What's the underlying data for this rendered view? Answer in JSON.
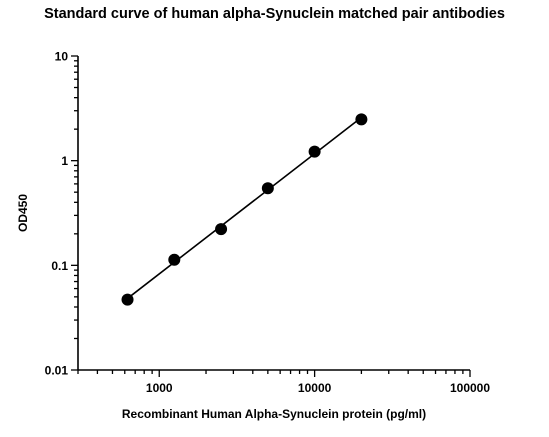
{
  "chart_data": {
    "type": "line",
    "title": "Standard curve of human alpha-Synuclein matched pair antibodies",
    "xlabel": "Recombinant Human Alpha-Synuclein protein (pg/ml)",
    "ylabel": "OD450",
    "xscale": "log",
    "yscale": "log",
    "xlim": [
      300,
      100000
    ],
    "ylim": [
      0.01,
      10
    ],
    "xticks": [
      1000,
      10000,
      100000
    ],
    "xtick_labels": [
      "1000",
      "10000",
      "100000"
    ],
    "yticks": [
      0.01,
      0.1,
      1,
      10
    ],
    "ytick_labels": [
      "0.01",
      "0.1",
      "1",
      "10"
    ],
    "grid": false,
    "legend": "none",
    "series": [
      {
        "x": [
          625,
          1250,
          2500,
          5000,
          10000,
          20000
        ],
        "y": [
          0.047,
          0.113,
          0.222,
          0.545,
          1.22,
          2.48
        ],
        "color": "#000000",
        "marker": "circle",
        "fit_line": true
      }
    ]
  }
}
